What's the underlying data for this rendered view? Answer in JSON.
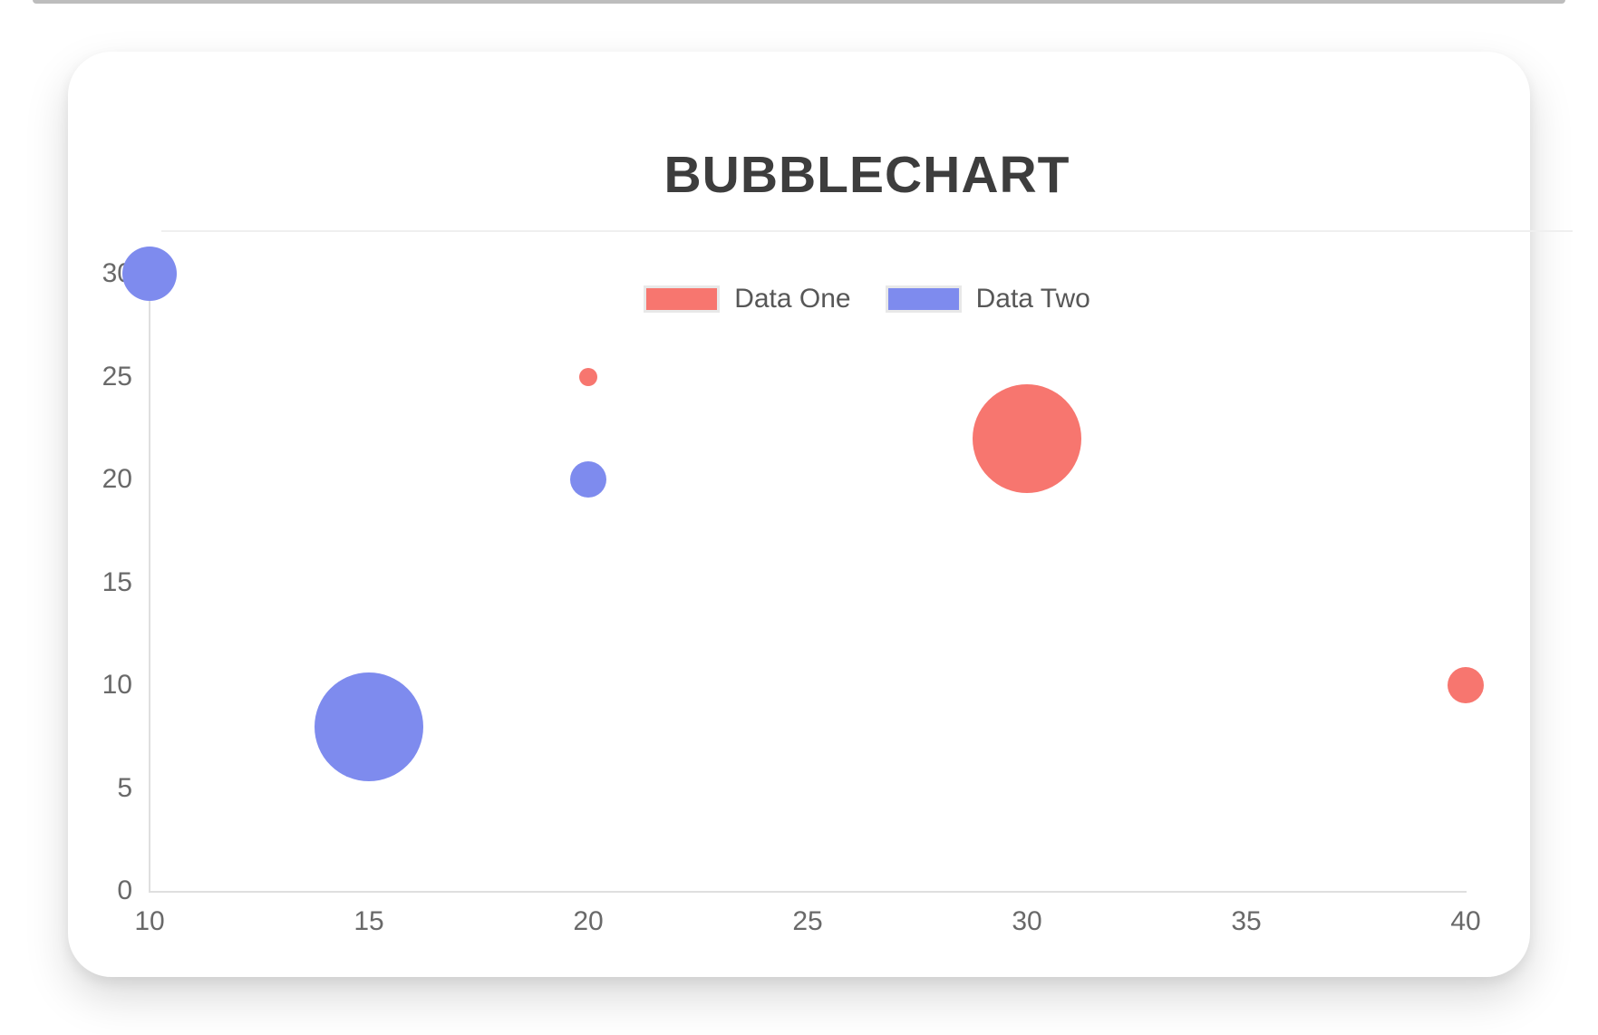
{
  "page": {
    "title": "BUBBLECHART"
  },
  "colors": {
    "series_one": "#F7766F",
    "series_two": "#7E8BEE",
    "axis_line": "#DFDFDF",
    "tick_label": "#696969",
    "title_text": "#3D3D3D",
    "legend_text": "#575757",
    "legend_swatch_border": "#E8E8E8",
    "card_background": "#FFFFFF",
    "top_rule": "#BDBDBD",
    "title_divider": "#EFEFEF"
  },
  "chart_data": {
    "type": "bubble",
    "title": "BUBBLECHART",
    "xlabel": "",
    "ylabel": "",
    "xlim": [
      10,
      40
    ],
    "ylim": [
      0,
      30
    ],
    "x_ticks": [
      10,
      15,
      20,
      25,
      30,
      35,
      40
    ],
    "y_ticks": [
      0,
      5,
      10,
      15,
      20,
      25,
      30
    ],
    "grid": false,
    "legend_position": "top-center",
    "series": [
      {
        "name": "Data One",
        "color": "#F7766F",
        "points": [
          {
            "x": 20,
            "y": 25,
            "r": 5
          },
          {
            "x": 30,
            "y": 22,
            "r": 30
          },
          {
            "x": 40,
            "y": 10,
            "r": 10
          }
        ]
      },
      {
        "name": "Data Two",
        "color": "#7E8BEE",
        "points": [
          {
            "x": 10,
            "y": 30,
            "r": 15
          },
          {
            "x": 20,
            "y": 20,
            "r": 10
          },
          {
            "x": 15,
            "y": 8,
            "r": 30
          }
        ]
      }
    ]
  }
}
